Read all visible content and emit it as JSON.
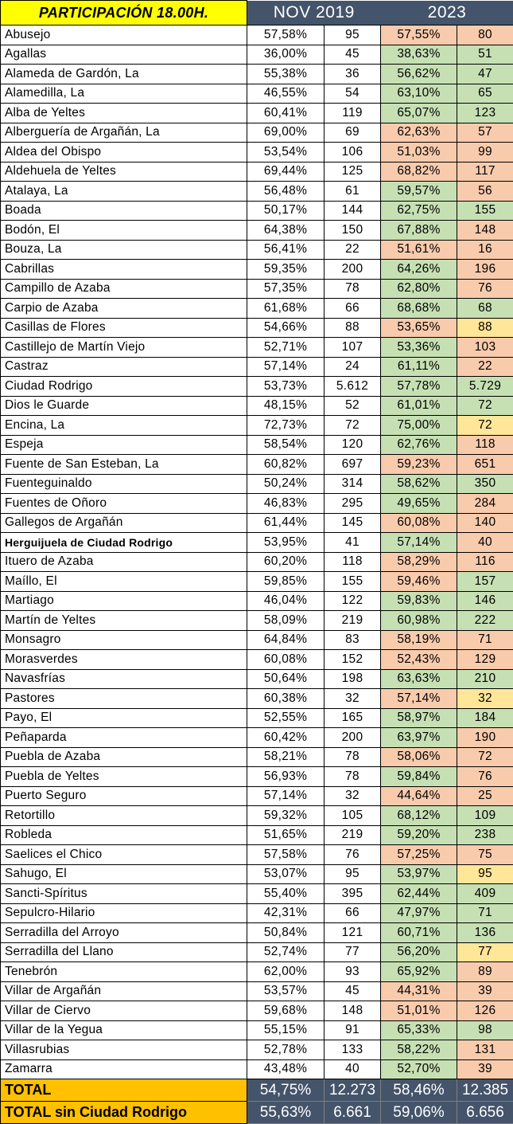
{
  "header": {
    "title": "PARTICIPACIÓN 18.00H.",
    "year_a": "NOV 2019",
    "year_b": "2023"
  },
  "colors": {
    "title_bg": "#ffff00",
    "year_header_bg": "#44546a",
    "increase": "#c6e0b4",
    "decrease": "#f8cbad",
    "equal": "#ffe699",
    "total_label_bg": "#ffc000"
  },
  "rows": [
    {
      "name": "Abusejo",
      "p19": "57,58%",
      "v19": "95",
      "p23": "57,55%",
      "v23": "80",
      "p23_status": "down",
      "v23_status": "down"
    },
    {
      "name": "Agallas",
      "p19": "36,00%",
      "v19": "45",
      "p23": "38,63%",
      "v23": "51",
      "p23_status": "up",
      "v23_status": "up"
    },
    {
      "name": "Alameda de Gardón, La",
      "p19": "55,38%",
      "v19": "36",
      "p23": "56,62%",
      "v23": "47",
      "p23_status": "up",
      "v23_status": "up"
    },
    {
      "name": "Alamedilla, La",
      "p19": "46,55%",
      "v19": "54",
      "p23": "63,10%",
      "v23": "65",
      "p23_status": "up",
      "v23_status": "up"
    },
    {
      "name": "Alba de Yeltes",
      "p19": "60,41%",
      "v19": "119",
      "p23": "65,07%",
      "v23": "123",
      "p23_status": "up",
      "v23_status": "up"
    },
    {
      "name": "Alberguería de Argañán, La",
      "p19": "69,00%",
      "v19": "69",
      "p23": "62,63%",
      "v23": "57",
      "p23_status": "down",
      "v23_status": "down"
    },
    {
      "name": "Aldea del Obispo",
      "p19": "53,54%",
      "v19": "106",
      "p23": "51,03%",
      "v23": "99",
      "p23_status": "down",
      "v23_status": "down"
    },
    {
      "name": "Aldehuela de Yeltes",
      "p19": "69,44%",
      "v19": "125",
      "p23": "68,82%",
      "v23": "117",
      "p23_status": "down",
      "v23_status": "down"
    },
    {
      "name": "Atalaya, La",
      "p19": "56,48%",
      "v19": "61",
      "p23": "59,57%",
      "v23": "56",
      "p23_status": "up",
      "v23_status": "down"
    },
    {
      "name": "Boada",
      "p19": "50,17%",
      "v19": "144",
      "p23": "62,75%",
      "v23": "155",
      "p23_status": "up",
      "v23_status": "up"
    },
    {
      "name": "Bodón, El",
      "p19": "64,38%",
      "v19": "150",
      "p23": "67,88%",
      "v23": "148",
      "p23_status": "up",
      "v23_status": "down"
    },
    {
      "name": "Bouza, La",
      "p19": "56,41%",
      "v19": "22",
      "p23": "51,61%",
      "v23": "16",
      "p23_status": "down",
      "v23_status": "down"
    },
    {
      "name": "Cabrillas",
      "p19": "59,35%",
      "v19": "200",
      "p23": "64,26%",
      "v23": "196",
      "p23_status": "up",
      "v23_status": "down"
    },
    {
      "name": "Campillo de Azaba",
      "p19": "57,35%",
      "v19": "78",
      "p23": "62,80%",
      "v23": "76",
      "p23_status": "up",
      "v23_status": "down"
    },
    {
      "name": "Carpio de Azaba",
      "p19": "61,68%",
      "v19": "66",
      "p23": "68,68%",
      "v23": "68",
      "p23_status": "up",
      "v23_status": "up"
    },
    {
      "name": "Casillas de Flores",
      "p19": "54,66%",
      "v19": "88",
      "p23": "53,65%",
      "v23": "88",
      "p23_status": "down",
      "v23_status": "same"
    },
    {
      "name": "Castillejo de Martín Viejo",
      "p19": "52,71%",
      "v19": "107",
      "p23": "53,36%",
      "v23": "103",
      "p23_status": "up",
      "v23_status": "down"
    },
    {
      "name": "Castraz",
      "p19": "57,14%",
      "v19": "24",
      "p23": "61,11%",
      "v23": "22",
      "p23_status": "up",
      "v23_status": "down"
    },
    {
      "name": "Ciudad Rodrigo",
      "p19": "53,73%",
      "v19": "5.612",
      "p23": "57,78%",
      "v23": "5.729",
      "p23_status": "up",
      "v23_status": "up"
    },
    {
      "name": "Dios le Guarde",
      "p19": "48,15%",
      "v19": "52",
      "p23": "61,01%",
      "v23": "72",
      "p23_status": "up",
      "v23_status": "up"
    },
    {
      "name": "Encina, La",
      "p19": "72,73%",
      "v19": "72",
      "p23": "75,00%",
      "v23": "72",
      "p23_status": "up",
      "v23_status": "same"
    },
    {
      "name": "Espeja",
      "p19": "58,54%",
      "v19": "120",
      "p23": "62,76%",
      "v23": "118",
      "p23_status": "up",
      "v23_status": "down"
    },
    {
      "name": "Fuente de San Esteban, La",
      "p19": "60,82%",
      "v19": "697",
      "p23": "59,23%",
      "v23": "651",
      "p23_status": "down",
      "v23_status": "down"
    },
    {
      "name": "Fuenteguinaldo",
      "p19": "50,24%",
      "v19": "314",
      "p23": "58,62%",
      "v23": "350",
      "p23_status": "up",
      "v23_status": "up"
    },
    {
      "name": "Fuentes de Oñoro",
      "p19": "46,83%",
      "v19": "295",
      "p23": "49,65%",
      "v23": "284",
      "p23_status": "up",
      "v23_status": "down"
    },
    {
      "name": "Gallegos de Argañán",
      "p19": "61,44%",
      "v19": "145",
      "p23": "60,08%",
      "v23": "140",
      "p23_status": "down",
      "v23_status": "down"
    },
    {
      "name": "Herguijuela de Ciudad Rodrigo",
      "p19": "53,95%",
      "v19": "41",
      "p23": "57,14%",
      "v23": "40",
      "p23_status": "up",
      "v23_status": "down",
      "bold": true
    },
    {
      "name": "Ituero de Azaba",
      "p19": "60,20%",
      "v19": "118",
      "p23": "58,29%",
      "v23": "116",
      "p23_status": "down",
      "v23_status": "down"
    },
    {
      "name": "Maíllo, El",
      "p19": "59,85%",
      "v19": "155",
      "p23": "59,46%",
      "v23": "157",
      "p23_status": "down",
      "v23_status": "up"
    },
    {
      "name": "Martiago",
      "p19": "46,04%",
      "v19": "122",
      "p23": "59,83%",
      "v23": "146",
      "p23_status": "up",
      "v23_status": "up"
    },
    {
      "name": "Martín de Yeltes",
      "p19": "58,09%",
      "v19": "219",
      "p23": "60,98%",
      "v23": "222",
      "p23_status": "up",
      "v23_status": "up"
    },
    {
      "name": "Monsagro",
      "p19": "64,84%",
      "v19": "83",
      "p23": "58,19%",
      "v23": "71",
      "p23_status": "down",
      "v23_status": "down"
    },
    {
      "name": "Morasverdes",
      "p19": "60,08%",
      "v19": "152",
      "p23": "52,43%",
      "v23": "129",
      "p23_status": "down",
      "v23_status": "down"
    },
    {
      "name": "Navasfrías",
      "p19": "50,64%",
      "v19": "198",
      "p23": "63,63%",
      "v23": "210",
      "p23_status": "up",
      "v23_status": "up"
    },
    {
      "name": "Pastores",
      "p19": "60,38%",
      "v19": "32",
      "p23": "57,14%",
      "v23": "32",
      "p23_status": "down",
      "v23_status": "same"
    },
    {
      "name": "Payo, El",
      "p19": "52,55%",
      "v19": "165",
      "p23": "58,97%",
      "v23": "184",
      "p23_status": "up",
      "v23_status": "up"
    },
    {
      "name": "Peñaparda",
      "p19": "60,42%",
      "v19": "200",
      "p23": "63,97%",
      "v23": "190",
      "p23_status": "up",
      "v23_status": "down"
    },
    {
      "name": "Puebla de Azaba",
      "p19": "58,21%",
      "v19": "78",
      "p23": "58,06%",
      "v23": "72",
      "p23_status": "down",
      "v23_status": "down"
    },
    {
      "name": "Puebla de Yeltes",
      "p19": "56,93%",
      "v19": "78",
      "p23": "59,84%",
      "v23": "76",
      "p23_status": "up",
      "v23_status": "down"
    },
    {
      "name": "Puerto Seguro",
      "p19": "57,14%",
      "v19": "32",
      "p23": "44,64%",
      "v23": "25",
      "p23_status": "down",
      "v23_status": "down"
    },
    {
      "name": "Retortillo",
      "p19": "59,32%",
      "v19": "105",
      "p23": "68,12%",
      "v23": "109",
      "p23_status": "up",
      "v23_status": "up"
    },
    {
      "name": "Robleda",
      "p19": "51,65%",
      "v19": "219",
      "p23": "59,20%",
      "v23": "238",
      "p23_status": "up",
      "v23_status": "up"
    },
    {
      "name": "Saelices el Chico",
      "p19": "57,58%",
      "v19": "76",
      "p23": "57,25%",
      "v23": "75",
      "p23_status": "down",
      "v23_status": "down"
    },
    {
      "name": "Sahugo, El",
      "p19": "53,07%",
      "v19": "95",
      "p23": "53,97%",
      "v23": "95",
      "p23_status": "up",
      "v23_status": "same"
    },
    {
      "name": "Sancti-Spíritus",
      "p19": "55,40%",
      "v19": "395",
      "p23": "62,44%",
      "v23": "409",
      "p23_status": "up",
      "v23_status": "up"
    },
    {
      "name": "Sepulcro-Hilario",
      "p19": "42,31%",
      "v19": "66",
      "p23": "47,97%",
      "v23": "71",
      "p23_status": "up",
      "v23_status": "up"
    },
    {
      "name": "Serradilla del Arroyo",
      "p19": "50,84%",
      "v19": "121",
      "p23": "60,71%",
      "v23": "136",
      "p23_status": "up",
      "v23_status": "up"
    },
    {
      "name": "Serradilla del Llano",
      "p19": "52,74%",
      "v19": "77",
      "p23": "56,20%",
      "v23": "77",
      "p23_status": "up",
      "v23_status": "same"
    },
    {
      "name": "Tenebrón",
      "p19": "62,00%",
      "v19": "93",
      "p23": "65,92%",
      "v23": "89",
      "p23_status": "up",
      "v23_status": "down"
    },
    {
      "name": "Villar de Argañán",
      "p19": "53,57%",
      "v19": "45",
      "p23": "44,31%",
      "v23": "39",
      "p23_status": "down",
      "v23_status": "down"
    },
    {
      "name": "Villar de Ciervo",
      "p19": "59,68%",
      "v19": "148",
      "p23": "51,01%",
      "v23": "126",
      "p23_status": "down",
      "v23_status": "down"
    },
    {
      "name": "Villar de la Yegua",
      "p19": "55,15%",
      "v19": "91",
      "p23": "65,33%",
      "v23": "98",
      "p23_status": "up",
      "v23_status": "up"
    },
    {
      "name": "Villasrubias",
      "p19": "52,78%",
      "v19": "133",
      "p23": "58,22%",
      "v23": "131",
      "p23_status": "up",
      "v23_status": "down"
    },
    {
      "name": "Zamarra",
      "p19": "43,48%",
      "v19": "40",
      "p23": "52,70%",
      "v23": "39",
      "p23_status": "up",
      "v23_status": "down"
    }
  ],
  "totals": [
    {
      "name": "TOTAL",
      "p19": "54,75%",
      "v19": "12.273",
      "p23": "58,46%",
      "v23": "12.385"
    },
    {
      "name": "TOTAL sin Ciudad Rodrigo",
      "p19": "55,63%",
      "v19": "6.661",
      "p23": "59,06%",
      "v23": "6.656"
    }
  ]
}
